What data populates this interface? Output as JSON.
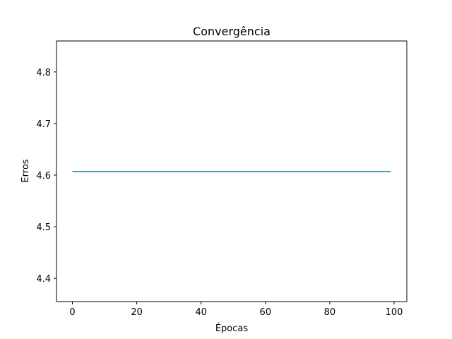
{
  "chart_data": {
    "type": "line",
    "title": "Convergência",
    "xlabel": "Épocas",
    "ylabel": "Erros",
    "xlim": [
      -4.95,
      103.95
    ],
    "ylim": [
      4.355,
      4.86
    ],
    "xticks": [
      0,
      20,
      40,
      60,
      80,
      100
    ],
    "yticks": [
      4.4,
      4.5,
      4.6,
      4.7,
      4.8
    ],
    "grid": false,
    "series": [
      {
        "color": "#1f77b4",
        "x_range": [
          0,
          99
        ],
        "y_constant": 4.607
      }
    ]
  }
}
